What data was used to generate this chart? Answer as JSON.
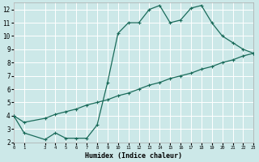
{
  "xlabel": "Humidex (Indice chaleur)",
  "ylabel": "",
  "bg_color": "#cce8e8",
  "line_color": "#1a6b5a",
  "grid_color": "#ffffff",
  "upper_x": [
    0,
    1,
    3,
    4,
    5,
    6,
    7,
    8,
    9,
    10,
    11,
    12,
    13,
    14,
    15,
    16,
    17,
    18,
    19,
    20,
    21,
    22,
    23
  ],
  "upper_y": [
    4.0,
    2.7,
    2.2,
    2.7,
    2.3,
    2.3,
    2.3,
    3.3,
    6.5,
    10.2,
    11.0,
    11.0,
    12.0,
    12.3,
    11.0,
    11.2,
    12.1,
    12.3,
    11.0,
    10.0,
    9.5,
    9.0,
    8.7
  ],
  "lower_x": [
    0,
    1,
    3,
    4,
    5,
    6,
    7,
    8,
    9,
    10,
    11,
    12,
    13,
    14,
    15,
    16,
    17,
    18,
    19,
    20,
    21,
    22,
    23
  ],
  "lower_y": [
    4.0,
    3.5,
    3.8,
    4.1,
    4.3,
    4.5,
    4.8,
    5.0,
    5.2,
    5.5,
    5.7,
    6.0,
    6.3,
    6.5,
    6.8,
    7.0,
    7.2,
    7.5,
    7.7,
    8.0,
    8.2,
    8.5,
    8.7
  ],
  "xlim": [
    0,
    23
  ],
  "ylim": [
    2,
    12.5
  ],
  "xticks": [
    0,
    1,
    3,
    4,
    5,
    6,
    7,
    8,
    9,
    10,
    11,
    12,
    13,
    14,
    15,
    16,
    17,
    18,
    19,
    20,
    21,
    22,
    23
  ],
  "yticks": [
    2,
    3,
    4,
    5,
    6,
    7,
    8,
    9,
    10,
    11,
    12
  ]
}
